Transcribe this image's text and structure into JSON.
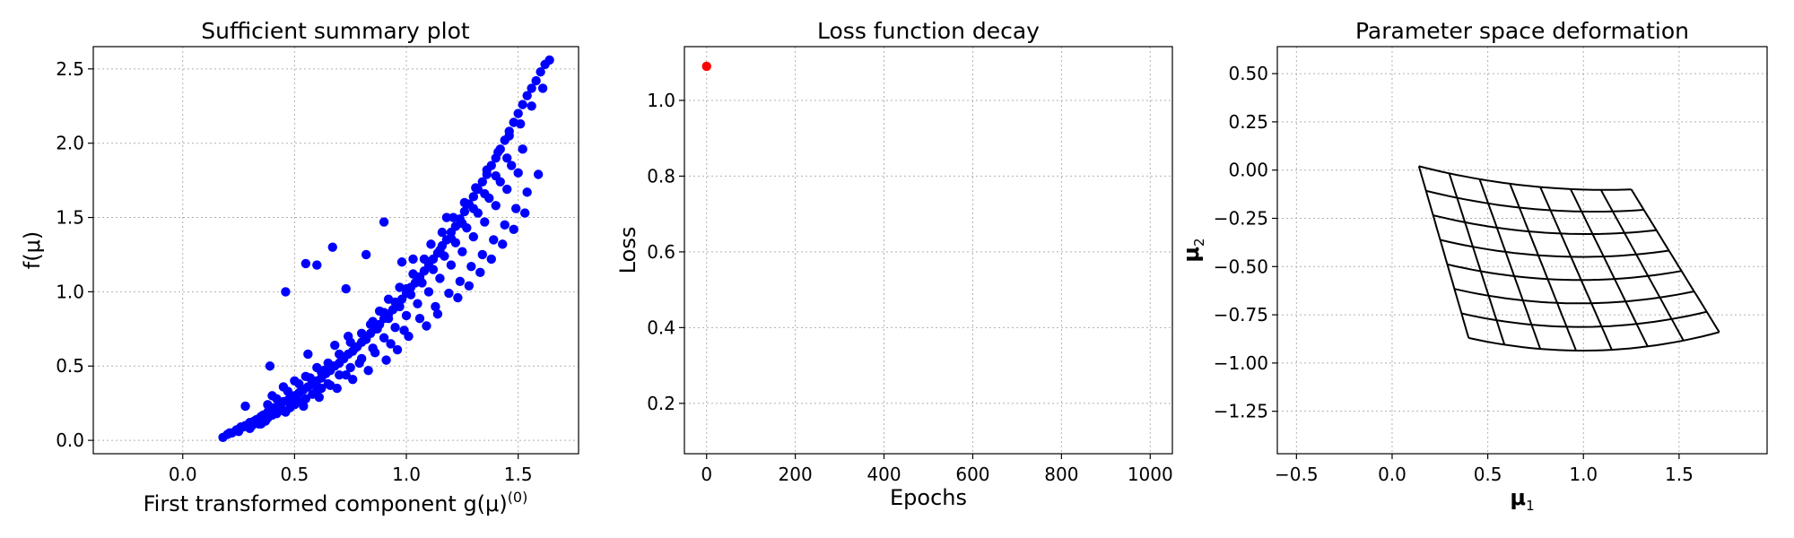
{
  "chart_data": [
    {
      "type": "scatter",
      "title": "Sufficient summary plot",
      "xlabel": "First transformed component g(μ)",
      "xlabel_superscript": "(0)",
      "ylabel": "f(μ)",
      "xlim": [
        -0.4,
        1.77
      ],
      "ylim": [
        -0.09,
        2.65
      ],
      "xticks": [
        0.0,
        0.5,
        1.0,
        1.5
      ],
      "xtick_labels": [
        "0.0",
        "0.5",
        "1.0",
        "1.5"
      ],
      "yticks": [
        0.0,
        0.5,
        1.0,
        1.5,
        2.0,
        2.5
      ],
      "ytick_labels": [
        "0.0",
        "0.5",
        "1.0",
        "1.5",
        "2.0",
        "2.5"
      ],
      "grid": true,
      "color": "#0000ff",
      "x": [
        0.18,
        0.2,
        0.22,
        0.24,
        0.25,
        0.27,
        0.28,
        0.3,
        0.32,
        0.33,
        0.35,
        0.36,
        0.38,
        0.4,
        0.41,
        0.43,
        0.45,
        0.47,
        0.49,
        0.5,
        0.52,
        0.54,
        0.56,
        0.58,
        0.6,
        0.62,
        0.64,
        0.66,
        0.68,
        0.7,
        0.72,
        0.74,
        0.76,
        0.78,
        0.8,
        0.82,
        0.84,
        0.86,
        0.88,
        0.9,
        0.92,
        0.94,
        0.96,
        0.98,
        1.0,
        1.02,
        1.04,
        1.06,
        1.08,
        1.1,
        1.12,
        1.14,
        1.16,
        1.18,
        1.2,
        1.22,
        1.24,
        1.26,
        1.28,
        1.3,
        1.32,
        1.34,
        1.36,
        1.38,
        1.4,
        1.42,
        1.44,
        1.46,
        1.48,
        1.5,
        1.52,
        1.54,
        1.56,
        1.58,
        1.6,
        1.62,
        1.64,
        0.3,
        0.32,
        0.35,
        0.38,
        0.4,
        0.42,
        0.45,
        0.48,
        0.5,
        0.55,
        0.6,
        0.62,
        0.65,
        0.7,
        0.75,
        0.8,
        0.85,
        0.9,
        0.95,
        1.0,
        1.05,
        1.1,
        1.15,
        1.2,
        1.25,
        1.3,
        1.35,
        1.4,
        1.45,
        1.5,
        0.38,
        0.42,
        0.47,
        0.52,
        0.57,
        0.62,
        0.67,
        0.72,
        0.77,
        0.82,
        0.87,
        0.92,
        0.97,
        1.02,
        1.07,
        1.12,
        1.17,
        1.22,
        1.27,
        1.32,
        1.37,
        1.42,
        1.47,
        1.52,
        0.4,
        0.45,
        0.5,
        0.55,
        0.6,
        0.65,
        0.7,
        0.75,
        0.8,
        0.85,
        0.9,
        0.95,
        1.0,
        1.05,
        1.1,
        1.15,
        1.2,
        1.25,
        1.3,
        1.35,
        1.4,
        1.45,
        0.39,
        0.53,
        0.56,
        0.6,
        0.63,
        0.68,
        0.74,
        0.84,
        0.88,
        0.92,
        0.97,
        1.03,
        1.08,
        1.11,
        1.16,
        1.21,
        1.26,
        1.31,
        1.36,
        1.41,
        1.46,
        1.51,
        1.56,
        1.61,
        0.28,
        0.34,
        0.44,
        0.51,
        0.58,
        0.66,
        0.73,
        0.79,
        0.86,
        0.93,
        0.99,
        1.06,
        1.13,
        1.19,
        1.24,
        1.29,
        1.34,
        1.39,
        1.44,
        1.49,
        1.54,
        1.59,
        0.21,
        0.26,
        0.31,
        0.37,
        0.46,
        0.54,
        0.61,
        0.69,
        0.76,
        0.83,
        0.91,
        0.96,
        1.01,
        1.09,
        1.14,
        1.23,
        1.28,
        1.33,
        1.38,
        1.43,
        1.48,
        1.53,
        0.6,
        0.67,
        0.82,
        0.9,
        0.55,
        0.46,
        0.73,
        0.98,
        1.03,
        1.18
      ],
      "y": [
        0.02,
        0.04,
        0.05,
        0.07,
        0.06,
        0.09,
        0.1,
        0.12,
        0.13,
        0.14,
        0.16,
        0.17,
        0.19,
        0.21,
        0.22,
        0.24,
        0.26,
        0.27,
        0.29,
        0.3,
        0.32,
        0.34,
        0.36,
        0.38,
        0.4,
        0.42,
        0.45,
        0.47,
        0.5,
        0.52,
        0.55,
        0.58,
        0.6,
        0.63,
        0.66,
        0.69,
        0.72,
        0.75,
        0.78,
        0.82,
        0.85,
        0.88,
        0.92,
        0.95,
        0.99,
        1.03,
        1.06,
        1.1,
        1.14,
        1.18,
        1.22,
        1.26,
        1.31,
        1.35,
        1.4,
        1.44,
        1.49,
        1.54,
        1.59,
        1.64,
        1.69,
        1.74,
        1.79,
        1.85,
        1.9,
        1.96,
        2.02,
        2.08,
        2.14,
        2.2,
        2.26,
        2.32,
        2.37,
        2.42,
        2.48,
        2.53,
        2.56,
        0.08,
        0.12,
        0.11,
        0.15,
        0.17,
        0.18,
        0.2,
        0.22,
        0.24,
        0.28,
        0.33,
        0.35,
        0.38,
        0.44,
        0.49,
        0.55,
        0.62,
        0.69,
        0.76,
        0.84,
        0.92,
        1.0,
        1.09,
        1.18,
        1.27,
        1.37,
        1.47,
        1.58,
        1.69,
        1.8,
        0.24,
        0.28,
        0.33,
        0.38,
        0.42,
        0.46,
        0.5,
        0.56,
        0.62,
        0.68,
        0.75,
        0.82,
        0.9,
        0.98,
        1.06,
        1.15,
        1.24,
        1.33,
        1.43,
        1.53,
        1.63,
        1.74,
        1.85,
        1.96,
        0.3,
        0.36,
        0.4,
        0.43,
        0.49,
        0.52,
        0.58,
        0.66,
        0.72,
        0.8,
        0.86,
        0.93,
        1.02,
        1.1,
        1.2,
        1.28,
        1.36,
        1.46,
        1.56,
        1.66,
        1.78,
        1.9,
        0.5,
        0.26,
        0.58,
        0.34,
        0.47,
        0.64,
        0.7,
        0.78,
        0.87,
        0.95,
        1.03,
        1.12,
        1.22,
        1.32,
        1.4,
        1.5,
        1.6,
        1.7,
        1.82,
        1.94,
        2.05,
        2.13,
        2.25,
        2.37,
        0.23,
        0.11,
        0.21,
        0.27,
        0.31,
        0.37,
        0.44,
        0.52,
        0.59,
        0.65,
        0.74,
        0.82,
        0.9,
        0.99,
        1.07,
        1.17,
        1.25,
        1.35,
        1.45,
        1.56,
        1.67,
        1.79,
        0.05,
        0.09,
        0.1,
        0.13,
        0.19,
        0.23,
        0.29,
        0.35,
        0.41,
        0.47,
        0.54,
        0.61,
        0.7,
        0.77,
        0.85,
        0.96,
        1.04,
        1.13,
        1.22,
        1.32,
        1.42,
        1.53,
        1.18,
        1.3,
        1.25,
        1.47,
        1.19,
        1.0,
        1.02,
        1.2,
        1.22,
        1.5
      ]
    },
    {
      "type": "scatter",
      "title": "Loss function decay",
      "xlabel": "Epochs",
      "ylabel": "Loss",
      "xlim": [
        -50,
        1050
      ],
      "ylim": [
        0.067,
        1.142
      ],
      "xticks": [
        0,
        200,
        400,
        600,
        800,
        1000
      ],
      "xtick_labels": [
        "0",
        "200",
        "400",
        "600",
        "800",
        "1000"
      ],
      "yticks": [
        0.2,
        0.4,
        0.6,
        0.8,
        1.0
      ],
      "ytick_labels": [
        "0.2",
        "0.4",
        "0.6",
        "0.8",
        "1.0"
      ],
      "grid": true,
      "color": "#ff0000",
      "x": [
        0
      ],
      "y": [
        1.09
      ]
    },
    {
      "type": "line",
      "title": "Parameter space deformation",
      "xlabel": "μ",
      "xlabel_subscript": "1",
      "ylabel": "μ",
      "ylabel_subscript": "2",
      "xlim": [
        -0.6,
        1.96
      ],
      "ylim": [
        -1.47,
        0.64
      ],
      "xticks": [
        -0.5,
        0.0,
        0.5,
        1.0,
        1.5
      ],
      "xtick_labels": [
        "−0.5",
        "0.0",
        "0.5",
        "1.0",
        "1.5"
      ],
      "yticks": [
        -1.25,
        -1.0,
        -0.75,
        -0.5,
        -0.25,
        0.0,
        0.25,
        0.5
      ],
      "ytick_labels": [
        "−1.25",
        "−1.00",
        "−0.75",
        "−0.50",
        "−0.25",
        "0.00",
        "0.25",
        "0.50"
      ],
      "grid": true,
      "color": "#000000",
      "corners": {
        "top_left": [
          0.14,
          0.02
        ],
        "top_right": [
          1.25,
          -0.1
        ],
        "bottom_left": [
          0.4,
          -0.87
        ],
        "bottom_right": [
          1.71,
          -0.84
        ]
      },
      "grid_divisions": 7,
      "bottom_sag": -0.08,
      "top_sag": -0.04
    }
  ]
}
